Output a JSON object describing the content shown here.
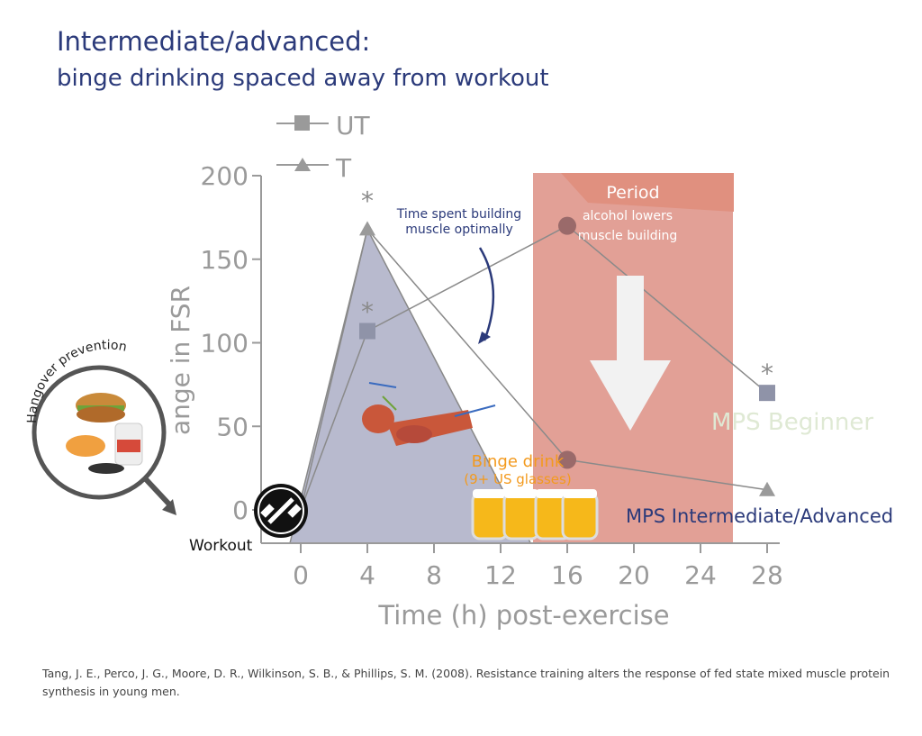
{
  "title": "Intermediate/advanced:",
  "subtitle": "binge drinking spaced away from workout",
  "citation": "Tang, J. E., Perco, J. G., Moore, D. R., Wilkinson, S. B., & Phillips, S. M. (2008). Resistance training alters the response of fed state mixed muscle protein synthesis in young men.",
  "colors": {
    "title": "#2b3a7a",
    "axis": "#9a9a9a",
    "shade": "#b8bace",
    "period": "#dd8f84",
    "orange": "#f39a1e",
    "beginner": "#dfe9d4"
  },
  "chart_data": {
    "type": "line",
    "xlabel": "Time (h) post-exercise",
    "ylabel": "ange in FSR",
    "xlim": [
      0,
      28
    ],
    "ylim": [
      0,
      200
    ],
    "xticks": [
      0,
      4,
      8,
      12,
      16,
      20,
      24,
      28
    ],
    "yticks": [
      0,
      50,
      100,
      150,
      200
    ],
    "grid": false,
    "legend": "top-left",
    "series": [
      {
        "name": "UT",
        "marker": "square",
        "x": [
          0,
          4,
          16,
          28
        ],
        "y": [
          0,
          107,
          170,
          70
        ],
        "significant": [
          false,
          true,
          false,
          true
        ]
      },
      {
        "name": "T",
        "marker": "triangle",
        "x": [
          0,
          4,
          16,
          28
        ],
        "y": [
          0,
          168,
          30,
          12
        ],
        "significant": [
          false,
          true,
          false,
          false
        ]
      }
    ],
    "annotations": {
      "optimal": "Time spent building muscle optimally",
      "period_title": "Period",
      "period_text1": "alcohol lowers",
      "period_text2": "muscle building",
      "period_range_h": [
        14,
        26
      ],
      "mps_beginner": "MPS Beginner",
      "mps_advanced": "MPS Intermediate/Advanced",
      "binge": "Binge drink",
      "binge_sub": "(9+ US glasses)",
      "workout": "Workout",
      "hangover": "Hangover prevention",
      "asterisk": "*"
    }
  }
}
